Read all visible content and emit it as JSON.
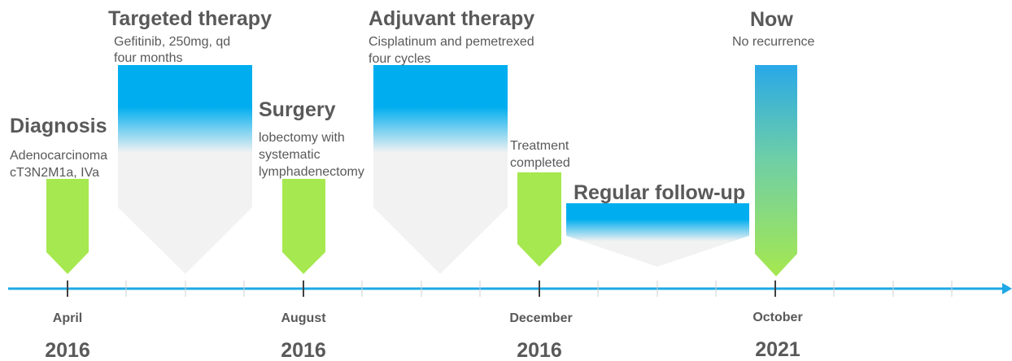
{
  "events": [
    {
      "title": "Diagnosis",
      "lines": [
        "Adenocarcinoma",
        "cT3N2M1a, IVa"
      ]
    },
    {
      "title": "Targeted therapy",
      "lines": [
        "Gefitinib, 250mg, qd",
        "four months"
      ]
    },
    {
      "title": "Surgery",
      "lines": [
        "lobectomy with",
        "systematic",
        "lymphadenectomy"
      ]
    },
    {
      "title": "Adjuvant therapy",
      "lines": [
        "Cisplatinum and pemetrexed",
        "four cycles"
      ]
    },
    {
      "lines": [
        "Treatment",
        "completed"
      ]
    },
    {
      "title": "Regular follow-up"
    },
    {
      "title": "Now",
      "lines": [
        "No recurrence"
      ]
    }
  ],
  "timeline": [
    {
      "month": "April",
      "year": "2016"
    },
    {
      "month": "August",
      "year": "2016"
    },
    {
      "month": "December",
      "year": "2016"
    },
    {
      "month": "October",
      "year": "2021"
    }
  ]
}
